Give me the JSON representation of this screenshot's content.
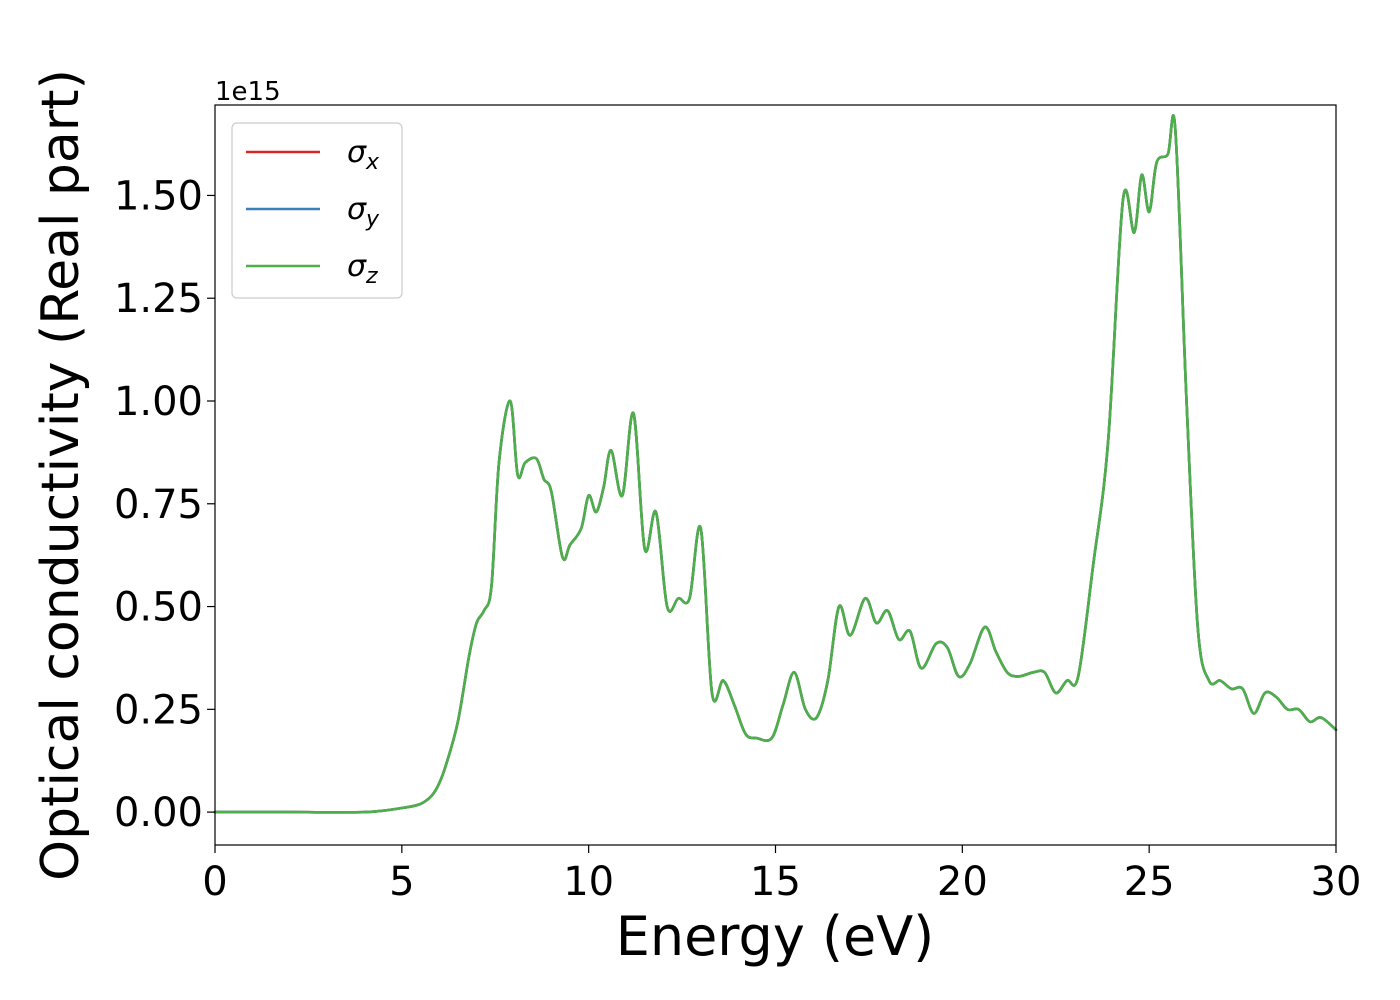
{
  "chart_data": {
    "type": "line",
    "xlabel": "Energy (eV)",
    "ylabel": "Optical conductivity (Real part)",
    "y_offset_label": "1e15",
    "y_scale_factor": 1000000000000000.0,
    "xlim": [
      0,
      30
    ],
    "ylim": [
      -0.08,
      1.72
    ],
    "xticks": [
      0,
      5,
      10,
      15,
      20,
      25,
      30
    ],
    "xtick_labels": [
      "0",
      "5",
      "10",
      "15",
      "20",
      "25",
      "30"
    ],
    "yticks": [
      0,
      0.25,
      0.5,
      0.75,
      1.0,
      1.25,
      1.5
    ],
    "ytick_labels": [
      "0.00",
      "0.25",
      "0.50",
      "0.75",
      "1.00",
      "1.25",
      "1.50"
    ],
    "grid": false,
    "legend_position": "top-left",
    "series": [
      {
        "name": "σx",
        "symbol": "σ",
        "subscript": "x",
        "color": "#d62728",
        "x": [
          0,
          2,
          4,
          5,
          5.5,
          5.8,
          6.0,
          6.2,
          6.5,
          6.8,
          7.0,
          7.2,
          7.4,
          7.6,
          7.9,
          8.1,
          8.3,
          8.6,
          8.8,
          9.0,
          9.3,
          9.5,
          9.8,
          10.0,
          10.2,
          10.4,
          10.6,
          10.9,
          11.2,
          11.5,
          11.8,
          12.1,
          12.4,
          12.7,
          13.0,
          13.3,
          13.6,
          13.9,
          14.2,
          14.5,
          14.9,
          15.2,
          15.5,
          15.8,
          16.1,
          16.4,
          16.7,
          17.0,
          17.4,
          17.7,
          18.0,
          18.3,
          18.6,
          18.9,
          19.3,
          19.6,
          19.9,
          20.2,
          20.6,
          20.9,
          21.2,
          21.5,
          21.9,
          22.2,
          22.5,
          22.8,
          23.1,
          23.5,
          23.9,
          24.3,
          24.6,
          24.8,
          25.0,
          25.2,
          25.5,
          25.7,
          26.0,
          26.3,
          26.6,
          26.9,
          27.2,
          27.5,
          27.8,
          28.1,
          28.4,
          28.7,
          29.0,
          29.3,
          29.6,
          30.0
        ],
        "y": [
          0,
          0,
          0,
          0.01,
          0.02,
          0.04,
          0.07,
          0.12,
          0.22,
          0.38,
          0.46,
          0.49,
          0.55,
          0.85,
          1.0,
          0.82,
          0.85,
          0.86,
          0.81,
          0.78,
          0.62,
          0.65,
          0.69,
          0.77,
          0.73,
          0.79,
          0.88,
          0.77,
          0.97,
          0.64,
          0.73,
          0.5,
          0.52,
          0.52,
          0.69,
          0.29,
          0.32,
          0.26,
          0.19,
          0.18,
          0.18,
          0.26,
          0.34,
          0.25,
          0.23,
          0.32,
          0.5,
          0.43,
          0.52,
          0.46,
          0.49,
          0.42,
          0.44,
          0.35,
          0.41,
          0.4,
          0.33,
          0.36,
          0.45,
          0.39,
          0.34,
          0.33,
          0.34,
          0.34,
          0.29,
          0.32,
          0.33,
          0.6,
          0.9,
          1.49,
          1.41,
          1.55,
          1.46,
          1.58,
          1.6,
          1.66,
          1.0,
          0.45,
          0.32,
          0.32,
          0.3,
          0.3,
          0.24,
          0.29,
          0.28,
          0.25,
          0.25,
          0.22,
          0.23,
          0.2
        ]
      },
      {
        "name": "σy",
        "symbol": "σ",
        "subscript": "y",
        "color": "#3b7fb6",
        "x": [
          0,
          2,
          4,
          5,
          5.5,
          5.8,
          6.0,
          6.2,
          6.5,
          6.8,
          7.0,
          7.2,
          7.4,
          7.6,
          7.9,
          8.1,
          8.3,
          8.6,
          8.8,
          9.0,
          9.3,
          9.5,
          9.8,
          10.0,
          10.2,
          10.4,
          10.6,
          10.9,
          11.2,
          11.5,
          11.8,
          12.1,
          12.4,
          12.7,
          13.0,
          13.3,
          13.6,
          13.9,
          14.2,
          14.5,
          14.9,
          15.2,
          15.5,
          15.8,
          16.1,
          16.4,
          16.7,
          17.0,
          17.4,
          17.7,
          18.0,
          18.3,
          18.6,
          18.9,
          19.3,
          19.6,
          19.9,
          20.2,
          20.6,
          20.9,
          21.2,
          21.5,
          21.9,
          22.2,
          22.5,
          22.8,
          23.1,
          23.5,
          23.9,
          24.3,
          24.6,
          24.8,
          25.0,
          25.2,
          25.5,
          25.7,
          26.0,
          26.3,
          26.6,
          26.9,
          27.2,
          27.5,
          27.8,
          28.1,
          28.4,
          28.7,
          29.0,
          29.3,
          29.6,
          30.0
        ],
        "y": [
          0,
          0,
          0,
          0.01,
          0.02,
          0.04,
          0.07,
          0.12,
          0.22,
          0.38,
          0.46,
          0.49,
          0.55,
          0.85,
          1.0,
          0.82,
          0.85,
          0.86,
          0.81,
          0.78,
          0.62,
          0.65,
          0.69,
          0.77,
          0.73,
          0.79,
          0.88,
          0.77,
          0.97,
          0.64,
          0.73,
          0.5,
          0.52,
          0.52,
          0.69,
          0.29,
          0.32,
          0.26,
          0.19,
          0.18,
          0.18,
          0.26,
          0.34,
          0.25,
          0.23,
          0.32,
          0.5,
          0.43,
          0.52,
          0.46,
          0.49,
          0.42,
          0.44,
          0.35,
          0.41,
          0.4,
          0.33,
          0.36,
          0.45,
          0.39,
          0.34,
          0.33,
          0.34,
          0.34,
          0.29,
          0.32,
          0.33,
          0.6,
          0.9,
          1.49,
          1.41,
          1.55,
          1.46,
          1.58,
          1.6,
          1.66,
          1.0,
          0.45,
          0.32,
          0.32,
          0.3,
          0.3,
          0.24,
          0.29,
          0.28,
          0.25,
          0.25,
          0.22,
          0.23,
          0.2
        ]
      },
      {
        "name": "σz",
        "symbol": "σ",
        "subscript": "z",
        "color": "#4daf4a",
        "x": [
          0,
          2,
          4,
          5,
          5.5,
          5.8,
          6.0,
          6.2,
          6.5,
          6.8,
          7.0,
          7.2,
          7.4,
          7.6,
          7.9,
          8.1,
          8.3,
          8.6,
          8.8,
          9.0,
          9.3,
          9.5,
          9.8,
          10.0,
          10.2,
          10.4,
          10.6,
          10.9,
          11.2,
          11.5,
          11.8,
          12.1,
          12.4,
          12.7,
          13.0,
          13.3,
          13.6,
          13.9,
          14.2,
          14.5,
          14.9,
          15.2,
          15.5,
          15.8,
          16.1,
          16.4,
          16.7,
          17.0,
          17.4,
          17.7,
          18.0,
          18.3,
          18.6,
          18.9,
          19.3,
          19.6,
          19.9,
          20.2,
          20.6,
          20.9,
          21.2,
          21.5,
          21.9,
          22.2,
          22.5,
          22.8,
          23.1,
          23.5,
          23.9,
          24.3,
          24.6,
          24.8,
          25.0,
          25.2,
          25.5,
          25.7,
          26.0,
          26.3,
          26.6,
          26.9,
          27.2,
          27.5,
          27.8,
          28.1,
          28.4,
          28.7,
          29.0,
          29.3,
          29.6,
          30.0
        ],
        "y": [
          0,
          0,
          0,
          0.01,
          0.02,
          0.04,
          0.07,
          0.12,
          0.22,
          0.38,
          0.46,
          0.49,
          0.55,
          0.85,
          1.0,
          0.82,
          0.85,
          0.86,
          0.81,
          0.78,
          0.62,
          0.65,
          0.69,
          0.77,
          0.73,
          0.79,
          0.88,
          0.77,
          0.97,
          0.64,
          0.73,
          0.5,
          0.52,
          0.52,
          0.69,
          0.29,
          0.32,
          0.26,
          0.19,
          0.18,
          0.18,
          0.26,
          0.34,
          0.25,
          0.23,
          0.32,
          0.5,
          0.43,
          0.52,
          0.46,
          0.49,
          0.42,
          0.44,
          0.35,
          0.41,
          0.4,
          0.33,
          0.36,
          0.45,
          0.39,
          0.34,
          0.33,
          0.34,
          0.34,
          0.29,
          0.32,
          0.33,
          0.6,
          0.9,
          1.49,
          1.41,
          1.55,
          1.46,
          1.58,
          1.6,
          1.66,
          1.0,
          0.45,
          0.32,
          0.32,
          0.3,
          0.3,
          0.24,
          0.29,
          0.28,
          0.25,
          0.25,
          0.22,
          0.23,
          0.2
        ]
      }
    ]
  }
}
